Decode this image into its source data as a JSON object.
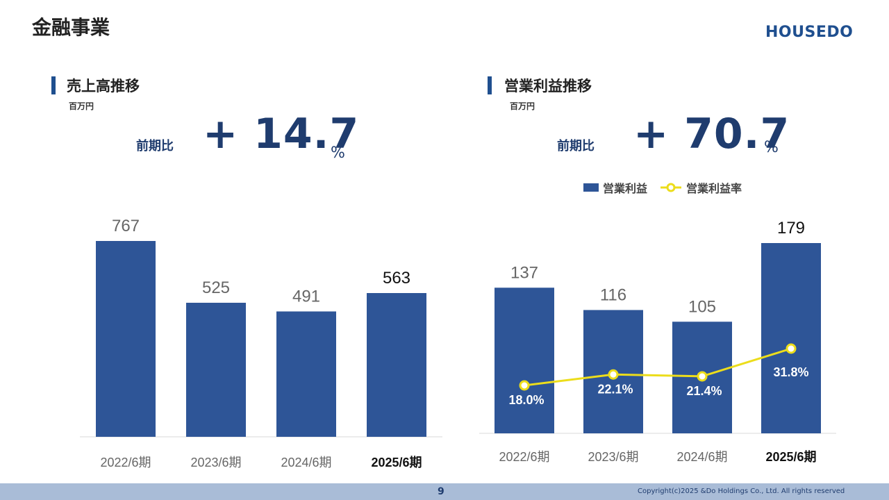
{
  "page_title": "金融事業",
  "logo": "HOUSEDO",
  "footer": {
    "page_number": "9",
    "copyright": "Copyright(c)2025 &Do Holdings Co., Ltd. All rights reserved"
  },
  "left": {
    "title": "売上高推移",
    "unit": "百万円",
    "comparison_label": "前期比",
    "comparison_value": "+ 14.7",
    "comparison_unit": "%"
  },
  "right": {
    "title": "営業利益推移",
    "unit": "百万円",
    "comparison_label": "前期比",
    "comparison_value": "+ 70.7",
    "comparison_unit": "%",
    "legend": {
      "bar": "営業利益",
      "line": "営業利益率"
    }
  },
  "colors": {
    "bar": "#2e5597",
    "line": "#ecdd1b",
    "accent": "#1f3c6e"
  },
  "chart_data": [
    {
      "type": "bar",
      "title": "売上高推移",
      "ylabel": "百万円",
      "categories": [
        "2022/6期",
        "2023/6期",
        "2024/6期",
        "2025/6期"
      ],
      "values": [
        767,
        525,
        491,
        563
      ],
      "value_labels": [
        "767",
        "525",
        "491",
        "563"
      ],
      "ylim": [
        0,
        767
      ],
      "grid": false
    },
    {
      "type": "bar",
      "title": "営業利益推移",
      "ylabel": "百万円",
      "categories": [
        "2022/6期",
        "2023/6期",
        "2024/6期",
        "2025/6期"
      ],
      "series": [
        {
          "name": "営業利益",
          "type": "bar",
          "values": [
            137,
            116,
            105,
            179
          ],
          "labels": [
            "137",
            "116",
            "105",
            "179"
          ]
        },
        {
          "name": "営業利益率",
          "type": "line",
          "values": [
            18.0,
            22.1,
            21.4,
            31.8
          ],
          "labels": [
            "18.0%",
            "22.1%",
            "21.4%",
            "31.8%"
          ]
        }
      ],
      "ylim": [
        0,
        179
      ],
      "legend": "top",
      "grid": false
    }
  ]
}
